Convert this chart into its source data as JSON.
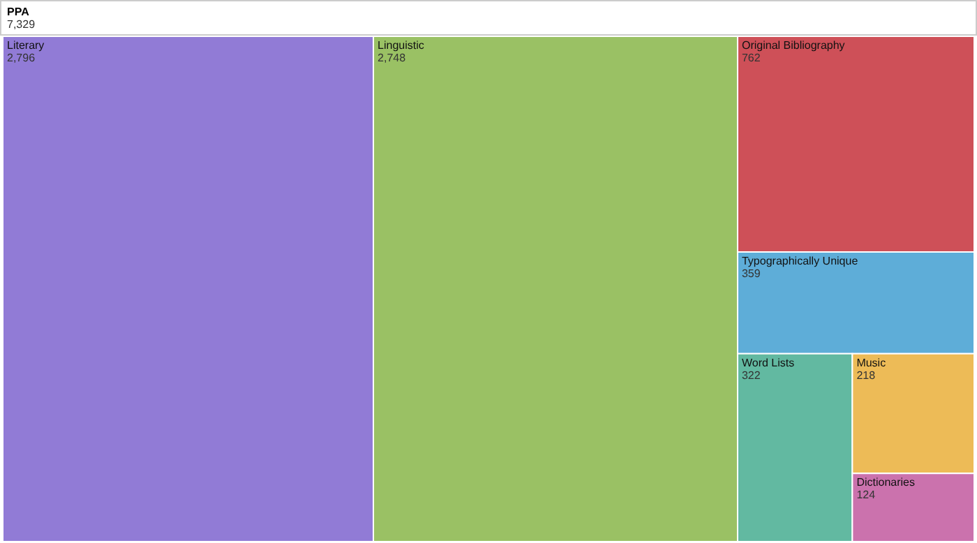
{
  "chart_data": {
    "type": "other",
    "title": "PPA",
    "subtitle": "7,329",
    "categories": [
      "Literary",
      "Linguistic",
      "Original Bibliography",
      "Typographically Unique",
      "Word Lists",
      "Music",
      "Dictionaries"
    ],
    "values": [
      2796,
      2748,
      762,
      359,
      322,
      218,
      124
    ],
    "colors": [
      "#917bd6",
      "#9ac164",
      "#ce5058",
      "#5eadd8",
      "#62b9a1",
      "#edbb57",
      "#cb72ad"
    ],
    "value_labels": [
      "2,796",
      "2,748",
      "762",
      "359",
      "322",
      "218",
      "124"
    ]
  }
}
